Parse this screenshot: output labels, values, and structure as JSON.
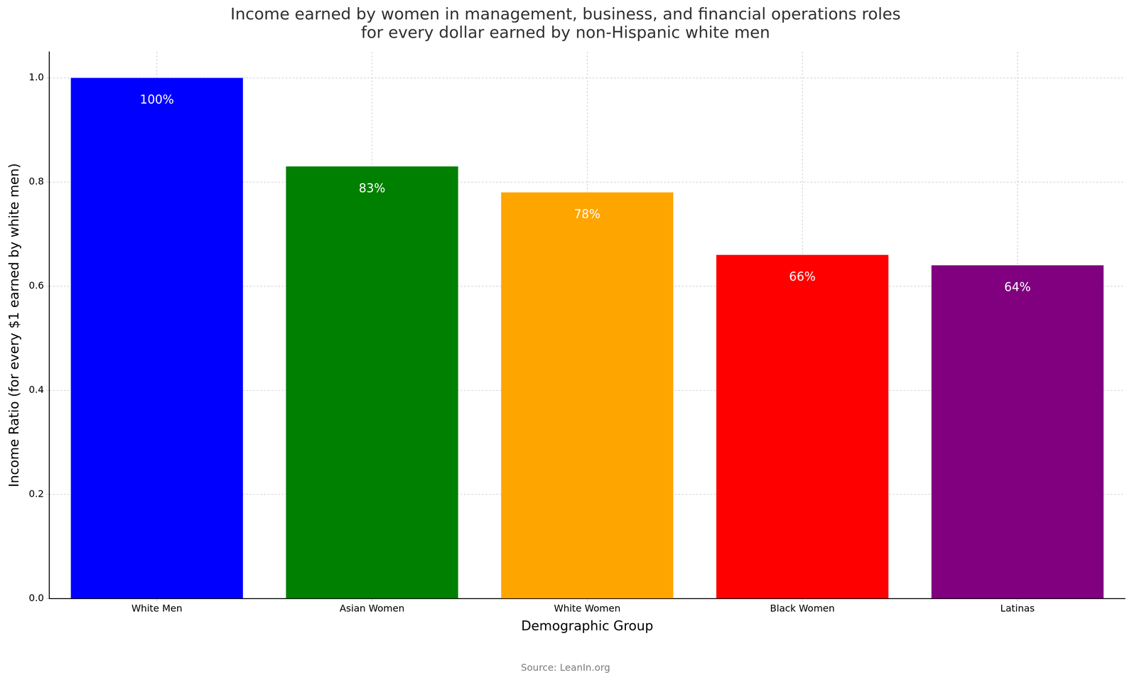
{
  "chart_data": {
    "type": "bar",
    "title": "Income earned by women in management, business, and financial operations roles\nfor every dollar earned by non-Hispanic white men",
    "x_label": "Demographic Group",
    "y_label": "Income Ratio (for every $1 earned by white men)",
    "source": "Source: LeanIn.org",
    "categories": [
      "White Men",
      "Asian Women",
      "White Women",
      "Black Women",
      "Latinas"
    ],
    "values": [
      1.0,
      0.83,
      0.78,
      0.66,
      0.64
    ],
    "value_labels": [
      "100%",
      "83%",
      "78%",
      "66%",
      "64%"
    ],
    "data_labels": true,
    "colors": [
      "#0000ff",
      "#008000",
      "#ffa500",
      "#ff0000",
      "#800080"
    ],
    "ylim": [
      0,
      1.05
    ],
    "yticks": [
      {
        "value": 0,
        "label": "0.0"
      },
      {
        "value": 0.2,
        "label": "0.2"
      },
      {
        "value": 0.4,
        "label": "0.4"
      },
      {
        "value": 0.6,
        "label": "0.6"
      },
      {
        "value": 0.8,
        "label": "0.8"
      },
      {
        "value": 1.0,
        "label": "1.0"
      }
    ],
    "grid": true
  }
}
